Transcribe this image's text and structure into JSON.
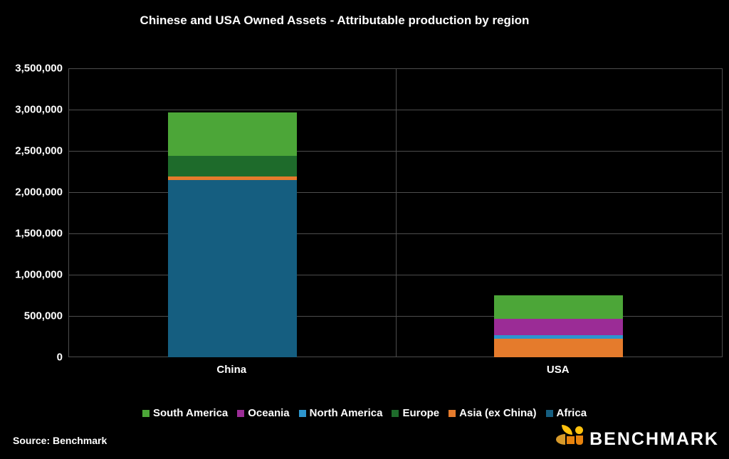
{
  "title": "Chinese and USA Owned Assets - Attributable production by region",
  "source": "Source: Benchmark",
  "brand": {
    "name": "BENCHMARK",
    "colors": {
      "yellow": "#FFC20E",
      "amber": "#D79A2B",
      "orange": "#E8830D"
    }
  },
  "colors": {
    "background": "#000000",
    "grid": "#4D4D4D",
    "text": "#FFFFFF"
  },
  "chart_data": {
    "type": "bar",
    "stacked": true,
    "title": "Chinese and USA Owned Assets - Attributable production by region",
    "categories": [
      "China",
      "USA"
    ],
    "series": [
      {
        "name": "Africa",
        "color": "#155E80",
        "values": [
          2150000,
          0
        ]
      },
      {
        "name": "Asia (ex China)",
        "color": "#E57B2C",
        "values": [
          40000,
          225000
        ]
      },
      {
        "name": "Europe",
        "color": "#1E6B2B",
        "values": [
          250000,
          0
        ]
      },
      {
        "name": "North America",
        "color": "#2D96CE",
        "values": [
          0,
          40000
        ]
      },
      {
        "name": "Oceania",
        "color": "#9B2C96",
        "values": [
          0,
          200000
        ]
      },
      {
        "name": "South America",
        "color": "#4CA638",
        "values": [
          525000,
          285000
        ]
      }
    ],
    "totals": {
      "China": 2965000,
      "USA": 750000
    },
    "legend_order": [
      "South America",
      "Oceania",
      "North America",
      "Europe",
      "Asia (ex China)",
      "Africa"
    ],
    "legend_position": "bottom",
    "grid": true,
    "xlabel": "",
    "ylabel": "",
    "ylim": [
      0,
      3500000
    ],
    "ytick_interval": 500000,
    "yticks_top_to_bottom": [
      "3,500,000",
      "3,000,000",
      "2,500,000",
      "2,000,000",
      "1,500,000",
      "1,000,000",
      "500,000",
      "0"
    ]
  }
}
